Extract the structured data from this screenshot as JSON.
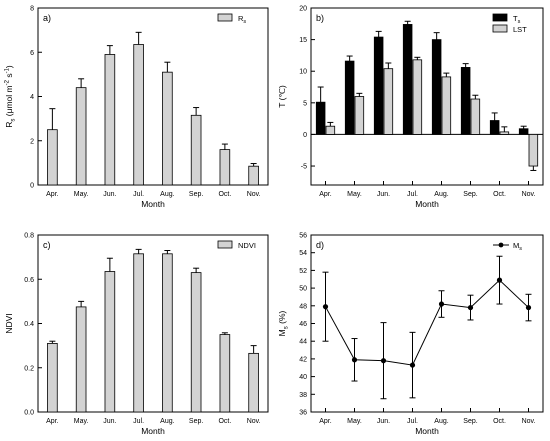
{
  "chart_data": [
    {
      "panel": "a)",
      "type": "bar",
      "xlabel": "Month",
      "ylabel_parts": [
        "R",
        "s",
        " (μmol m",
        "-2",
        " s",
        "-1",
        ")"
      ],
      "legend": [
        {
          "label": "R",
          "sub": "s",
          "color": "#d3d3d3"
        }
      ],
      "legend_position": "top-right",
      "categories": [
        "Apr.",
        "May.",
        "Jun.",
        "Jul.",
        "Aug.",
        "Sep.",
        "Oct.",
        "Nov."
      ],
      "ylim": [
        0,
        8
      ],
      "yticks": [
        0,
        2,
        4,
        6,
        8
      ],
      "series": [
        {
          "color": "#d3d3d3",
          "values": [
            2.5,
            4.4,
            5.9,
            6.35,
            5.1,
            3.15,
            1.6,
            0.85
          ],
          "errors": [
            0.95,
            0.4,
            0.4,
            0.55,
            0.45,
            0.35,
            0.25,
            0.12
          ]
        }
      ]
    },
    {
      "panel": "b)",
      "type": "bar",
      "xlabel": "Month",
      "ylabel_parts": [
        "T (℃)"
      ],
      "legend": [
        {
          "label": "T",
          "sub": "s",
          "color": "#000000"
        },
        {
          "label": "LST",
          "sub": "",
          "color": "#d3d3d3"
        }
      ],
      "legend_position": "top-right",
      "categories": [
        "Apr.",
        "May.",
        "Jun.",
        "Jul.",
        "Aug.",
        "Sep.",
        "Oct.",
        "Nov."
      ],
      "ylim": [
        -8,
        20
      ],
      "yticks": [
        -5,
        0,
        5,
        10,
        15,
        20
      ],
      "series": [
        {
          "color": "#000000",
          "values": [
            5.1,
            11.6,
            15.4,
            17.4,
            15.0,
            10.6,
            2.2,
            0.9
          ],
          "errors": [
            2.4,
            0.8,
            0.9,
            0.5,
            1.1,
            0.6,
            1.2,
            0.4
          ]
        },
        {
          "color": "#d3d3d3",
          "values": [
            1.3,
            6.0,
            10.4,
            11.8,
            9.1,
            5.6,
            0.4,
            -5.0
          ],
          "errors": [
            0.6,
            0.5,
            0.9,
            0.4,
            0.6,
            0.6,
            0.8,
            0.7
          ]
        }
      ]
    },
    {
      "panel": "c)",
      "type": "bar",
      "xlabel": "Month",
      "ylabel_parts": [
        "NDVI"
      ],
      "legend": [
        {
          "label": "NDVI",
          "sub": "",
          "color": "#d3d3d3"
        }
      ],
      "legend_position": "top-right",
      "categories": [
        "Apr.",
        "May.",
        "Jun.",
        "Jul.",
        "Aug.",
        "Sep.",
        "Oct.",
        "Nov."
      ],
      "ylim": [
        0,
        0.8
      ],
      "yticks": [
        0.0,
        0.2,
        0.4,
        0.6,
        0.8
      ],
      "ytick_labels": [
        "0.0",
        "0.2",
        "0.4",
        "0.6",
        "0.8"
      ],
      "series": [
        {
          "color": "#d3d3d3",
          "values": [
            0.31,
            0.475,
            0.635,
            0.715,
            0.715,
            0.63,
            0.35,
            0.265
          ],
          "errors": [
            0.01,
            0.025,
            0.06,
            0.02,
            0.015,
            0.02,
            0.008,
            0.035
          ]
        }
      ]
    },
    {
      "panel": "d)",
      "type": "line",
      "xlabel": "Month",
      "ylabel_parts": [
        "M",
        "s",
        " (%)"
      ],
      "legend": [
        {
          "label": "M",
          "sub": "s",
          "color": "#000000"
        }
      ],
      "legend_position": "top-right",
      "categories": [
        "Apr.",
        "May.",
        "Jun.",
        "Jul.",
        "Aug.",
        "Sep.",
        "Oct.",
        "Nov."
      ],
      "ylim": [
        36,
        56
      ],
      "yticks": [
        36,
        38,
        40,
        42,
        44,
        46,
        48,
        50,
        52,
        54,
        56
      ],
      "series": [
        {
          "color": "#000000",
          "values": [
            47.9,
            41.9,
            41.8,
            41.3,
            48.2,
            47.8,
            50.9,
            47.8
          ],
          "errors": [
            3.9,
            2.4,
            4.3,
            3.7,
            1.5,
            1.4,
            2.7,
            1.5
          ]
        }
      ]
    }
  ]
}
